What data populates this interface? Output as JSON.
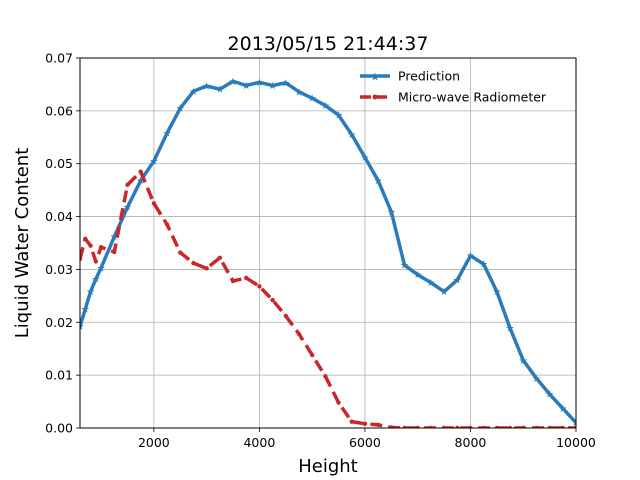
{
  "chart_data": {
    "type": "line",
    "title": "2013/05/15 21:44:37",
    "xlabel": "Height",
    "ylabel": "Liquid Water Content",
    "xlim": [
      600,
      10000
    ],
    "ylim": [
      0,
      0.07
    ],
    "xticks": [
      2000,
      4000,
      6000,
      8000,
      10000
    ],
    "xtick_labels": [
      "2000",
      "4000",
      "6000",
      "8000",
      "10000"
    ],
    "yticks": [
      0,
      0.01,
      0.02,
      0.03,
      0.04,
      0.05,
      0.06,
      0.07
    ],
    "ytick_labels": [
      "0.00",
      "0.01",
      "0.02",
      "0.03",
      "0.04",
      "0.05",
      "0.06",
      "0.07"
    ],
    "grid": true,
    "legend_position": "top-right",
    "series": [
      {
        "name": "Prediction",
        "color": "#2b7bba",
        "style": "solid",
        "marker": "star",
        "x": [
          600,
          700,
          800,
          900,
          1000,
          1250,
          1500,
          1750,
          2000,
          2250,
          2500,
          2750,
          3000,
          3250,
          3500,
          3750,
          4000,
          4250,
          4500,
          4750,
          5000,
          5250,
          5500,
          5750,
          6000,
          6250,
          6500,
          6750,
          7000,
          7250,
          7500,
          7750,
          8000,
          8250,
          8500,
          8750,
          9000,
          9250,
          9500,
          9750,
          10000
        ],
        "values": [
          0.0192,
          0.0225,
          0.0258,
          0.0282,
          0.0303,
          0.0362,
          0.0418,
          0.0468,
          0.0505,
          0.0558,
          0.0605,
          0.0637,
          0.0647,
          0.0641,
          0.0656,
          0.0648,
          0.0654,
          0.0648,
          0.0653,
          0.0636,
          0.0624,
          0.061,
          0.0592,
          0.0555,
          0.0512,
          0.0468,
          0.0409,
          0.0308,
          0.029,
          0.0275,
          0.0258,
          0.028,
          0.0326,
          0.031,
          0.0258,
          0.0189,
          0.0128,
          0.0094,
          0.0064,
          0.0037,
          0.001
        ]
      },
      {
        "name": "Micro-wave Radiometer",
        "color": "#c8282a",
        "style": "dashed",
        "marker": "dot",
        "x": [
          600,
          700,
          800,
          900,
          1000,
          1250,
          1500,
          1750,
          2000,
          2250,
          2500,
          2750,
          3000,
          3250,
          3500,
          3750,
          4000,
          4250,
          4500,
          4750,
          5000,
          5250,
          5500,
          5750,
          6000,
          6250,
          6500,
          6750,
          7000,
          7250,
          7500,
          7750,
          8000,
          8250,
          8500,
          8750,
          9000,
          9250,
          9500,
          9750,
          10000
        ],
        "values": [
          0.032,
          0.0358,
          0.0345,
          0.0315,
          0.0342,
          0.0333,
          0.046,
          0.0485,
          0.0425,
          0.0385,
          0.0332,
          0.0312,
          0.0302,
          0.0322,
          0.0278,
          0.0284,
          0.0268,
          0.0242,
          0.0212,
          0.0178,
          0.0138,
          0.0098,
          0.0048,
          0.0012,
          0.0008,
          0.0006,
          0.0001,
          0.0,
          0.0,
          0.0,
          0.0,
          0.0,
          0.0,
          0.0,
          0.0,
          0.0,
          0.0,
          0.0,
          0.0,
          0.0,
          0.0
        ]
      }
    ]
  }
}
